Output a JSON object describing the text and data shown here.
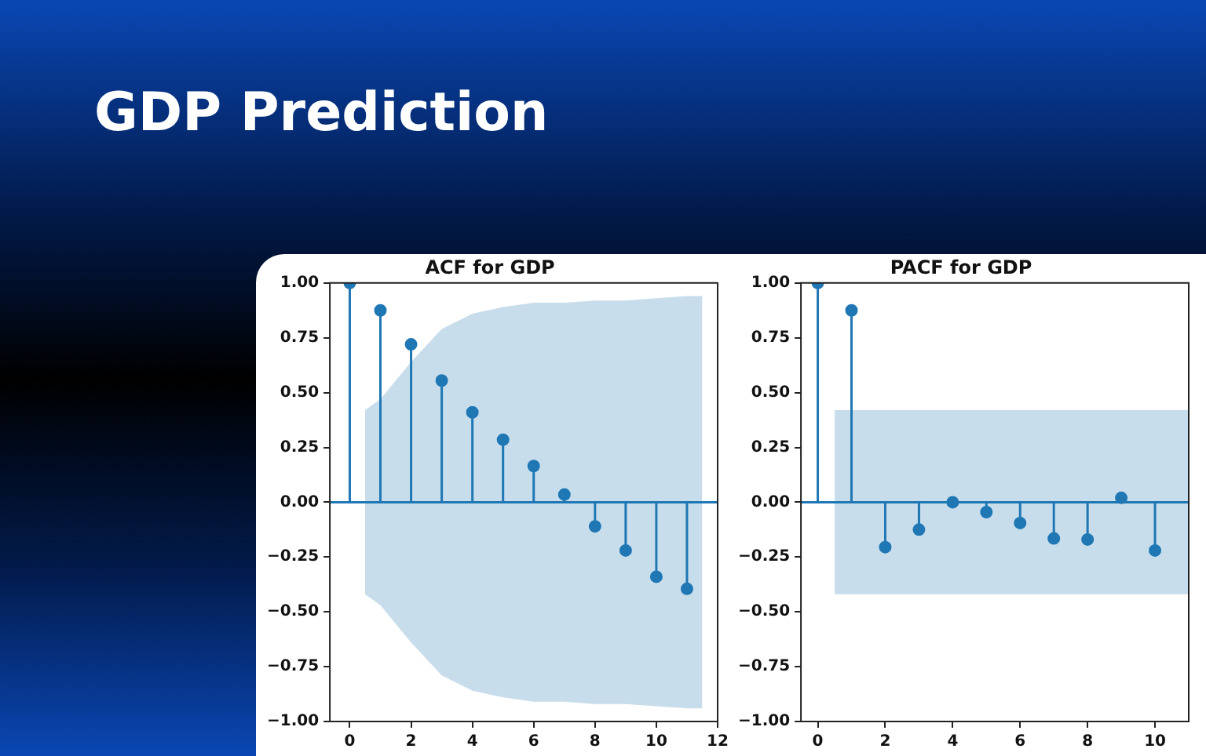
{
  "chart_data": [
    {
      "type": "other",
      "title": "GDP Prediction"
    },
    {
      "type": "lollipop",
      "title": "ACF for GDP",
      "xlim": [
        -0.65,
        12
      ],
      "xticks": [
        0,
        2,
        4,
        6,
        8,
        10,
        12
      ],
      "ylim": [
        -1,
        1
      ],
      "yticks": [
        {
          "value": -1,
          "label": "−1.00"
        },
        {
          "value": -0.75,
          "label": "−0.75"
        },
        {
          "value": -0.5,
          "label": "−0.50"
        },
        {
          "value": -0.25,
          "label": "−0.25"
        },
        {
          "value": 0,
          "label": "0.00"
        },
        {
          "value": 0.25,
          "label": "0.25"
        },
        {
          "value": 0.5,
          "label": "0.50"
        },
        {
          "value": 0.75,
          "label": "0.75"
        },
        {
          "value": 1,
          "label": "1.00"
        }
      ],
      "series": [
        {
          "type": "line",
          "color": "#1f77b4",
          "marker": "none",
          "x": [
            -0.65,
            0.5,
            1,
            2,
            3,
            4,
            5,
            6,
            7,
            8,
            9,
            10,
            11,
            11.5,
            12
          ],
          "values": [
            0,
            0,
            0,
            0,
            0,
            0,
            0,
            0,
            0,
            0,
            0,
            0,
            0,
            0,
            0
          ],
          "lower": [
            null,
            -0.42,
            -0.47,
            -0.64,
            -0.79,
            -0.86,
            -0.89,
            -0.91,
            -0.91,
            -0.92,
            -0.92,
            -0.93,
            -0.94,
            -0.94,
            null
          ],
          "upper": [
            null,
            0.42,
            0.47,
            0.64,
            0.79,
            0.86,
            0.89,
            0.91,
            0.91,
            0.92,
            0.92,
            0.93,
            0.94,
            0.94,
            null
          ]
        },
        {
          "type": "lollipop",
          "color": "#1f77b4",
          "marker": "circle",
          "x": [
            0,
            1,
            2,
            3,
            4,
            5,
            6,
            7,
            8,
            9,
            10,
            11
          ],
          "values": [
            1,
            0.875,
            0.72,
            0.555,
            0.41,
            0.285,
            0.165,
            0.035,
            -0.11,
            -0.22,
            -0.34,
            -0.395
          ]
        }
      ]
    },
    {
      "type": "lollipop",
      "title": "PACF for GDP",
      "xlim": [
        -0.5,
        11
      ],
      "xticks": [
        0,
        2,
        4,
        6,
        8,
        10
      ],
      "ylim": [
        -1,
        1
      ],
      "yticks": [
        {
          "value": -1,
          "label": "−1.00"
        },
        {
          "value": -0.75,
          "label": "−0.75"
        },
        {
          "value": -0.5,
          "label": "−0.50"
        },
        {
          "value": -0.25,
          "label": "−0.25"
        },
        {
          "value": 0,
          "label": "0.00"
        },
        {
          "value": 0.25,
          "label": "0.25"
        },
        {
          "value": 0.5,
          "label": "0.50"
        },
        {
          "value": 0.75,
          "label": "0.75"
        },
        {
          "value": 1,
          "label": "1.00"
        }
      ],
      "series": [
        {
          "type": "line",
          "color": "#1f77b4",
          "marker": "none",
          "x": [
            -0.5,
            0.5,
            11
          ],
          "values": [
            0,
            0,
            0
          ],
          "lower": [
            null,
            -0.42,
            -0.42
          ],
          "upper": [
            null,
            0.42,
            0.42
          ]
        },
        {
          "type": "lollipop",
          "color": "#1f77b4",
          "marker": "circle",
          "x": [
            0,
            1,
            2,
            3,
            4,
            5,
            6,
            7,
            8,
            9,
            10
          ],
          "values": [
            1,
            0.875,
            -0.205,
            -0.125,
            0,
            -0.045,
            -0.095,
            -0.165,
            -0.17,
            0.02,
            -0.22
          ]
        }
      ]
    }
  ]
}
